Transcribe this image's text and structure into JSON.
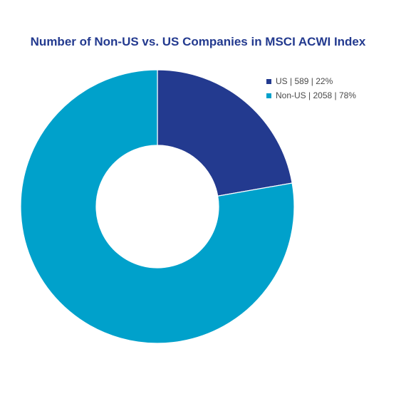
{
  "chart_data": {
    "type": "pie",
    "variant": "donut",
    "title": "Number of Non-US vs. US Companies in MSCI ACWI Index",
    "legend_position": "top-right",
    "series": [
      {
        "name": "US",
        "value": 589,
        "percent": 22,
        "color": "#233a8f",
        "legend_label": "US | 589 | 22%"
      },
      {
        "name": "Non-US",
        "value": 2058,
        "percent": 78,
        "color": "#00a1cb",
        "legend_label": "Non-US | 2058 | 78%"
      }
    ]
  }
}
